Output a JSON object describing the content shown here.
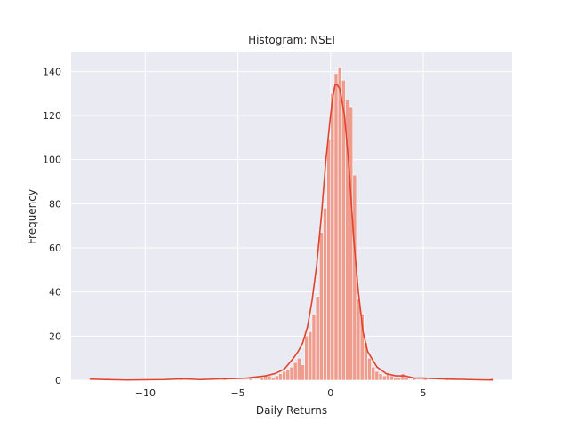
{
  "chart_data": {
    "type": "bar",
    "title": "Histogram: NSEI",
    "xlabel": "Daily Returns",
    "ylabel": "Frequency",
    "xlim": [
      -14.0,
      9.8
    ],
    "ylim": [
      0,
      149
    ],
    "xticks": [
      -10,
      -5,
      0,
      5
    ],
    "xtick_labels": [
      "−10",
      "−5",
      "0",
      "5"
    ],
    "yticks": [
      0,
      20,
      40,
      60,
      80,
      100,
      120,
      140
    ],
    "grid": true,
    "bin_width": 0.2,
    "bins": [
      {
        "x0": -13.0,
        "count": 1
      },
      {
        "x0": -8.2,
        "count": 1
      },
      {
        "x0": -5.8,
        "count": 1
      },
      {
        "x0": -4.4,
        "count": 1
      },
      {
        "x0": -3.8,
        "count": 1
      },
      {
        "x0": -3.6,
        "count": 2
      },
      {
        "x0": -3.4,
        "count": 2
      },
      {
        "x0": -3.2,
        "count": 1
      },
      {
        "x0": -3.0,
        "count": 2
      },
      {
        "x0": -2.8,
        "count": 3
      },
      {
        "x0": -2.6,
        "count": 4
      },
      {
        "x0": -2.4,
        "count": 5
      },
      {
        "x0": -2.2,
        "count": 6
      },
      {
        "x0": -2.0,
        "count": 8
      },
      {
        "x0": -1.8,
        "count": 10
      },
      {
        "x0": -1.6,
        "count": 7
      },
      {
        "x0": -1.4,
        "count": 20
      },
      {
        "x0": -1.2,
        "count": 22
      },
      {
        "x0": -1.0,
        "count": 30
      },
      {
        "x0": -0.8,
        "count": 38
      },
      {
        "x0": -0.6,
        "count": 67
      },
      {
        "x0": -0.4,
        "count": 78
      },
      {
        "x0": -0.2,
        "count": 109
      },
      {
        "x0": 0.0,
        "count": 130
      },
      {
        "x0": 0.2,
        "count": 139
      },
      {
        "x0": 0.4,
        "count": 142
      },
      {
        "x0": 0.6,
        "count": 136
      },
      {
        "x0": 0.8,
        "count": 127
      },
      {
        "x0": 1.0,
        "count": 124
      },
      {
        "x0": 1.2,
        "count": 93
      },
      {
        "x0": 1.4,
        "count": 37
      },
      {
        "x0": 1.6,
        "count": 30
      },
      {
        "x0": 1.8,
        "count": 17
      },
      {
        "x0": 2.0,
        "count": 10
      },
      {
        "x0": 2.2,
        "count": 6
      },
      {
        "x0": 2.4,
        "count": 4
      },
      {
        "x0": 2.6,
        "count": 3
      },
      {
        "x0": 2.8,
        "count": 2
      },
      {
        "x0": 3.0,
        "count": 3
      },
      {
        "x0": 3.2,
        "count": 2
      },
      {
        "x0": 3.4,
        "count": 1
      },
      {
        "x0": 3.6,
        "count": 1
      },
      {
        "x0": 3.8,
        "count": 3
      },
      {
        "x0": 4.0,
        "count": 1
      },
      {
        "x0": 4.4,
        "count": 1
      },
      {
        "x0": 5.0,
        "count": 1
      },
      {
        "x0": 6.2,
        "count": 1
      },
      {
        "x0": 8.6,
        "count": 1
      }
    ],
    "kde": {
      "x": [
        -13.0,
        -11.0,
        -9.0,
        -8.0,
        -7.0,
        -6.0,
        -5.0,
        -4.5,
        -4.0,
        -3.5,
        -3.0,
        -2.5,
        -2.0,
        -1.75,
        -1.5,
        -1.25,
        -1.0,
        -0.75,
        -0.5,
        -0.25,
        0.0,
        0.1,
        0.2,
        0.25,
        0.35,
        0.5,
        0.75,
        1.0,
        1.25,
        1.5,
        1.75,
        2.0,
        2.5,
        3.0,
        3.5,
        4.0,
        4.5,
        5.0,
        6.0,
        7.0,
        8.0,
        8.8
      ],
      "y": [
        0.5,
        0.1,
        0.3,
        0.6,
        0.3,
        0.6,
        0.8,
        1.0,
        1.5,
        2.0,
        3.0,
        5.0,
        10.0,
        13.0,
        17.0,
        24.0,
        36.0,
        52.0,
        74.0,
        100.0,
        120.0,
        127.0,
        132.0,
        134.0,
        134.0,
        132.0,
        120.0,
        96.0,
        64.0,
        40.0,
        22.0,
        13.0,
        6.0,
        3.0,
        2.0,
        2.0,
        1.0,
        1.0,
        0.6,
        0.4,
        0.2,
        0.1
      ]
    },
    "colors": {
      "bar_fill": "#ee9c8e",
      "bar_stroke": "#ffffff",
      "kde_line": "#e0442b",
      "plot_bg": "#eaeaf2",
      "grid": "#ffffff"
    }
  }
}
